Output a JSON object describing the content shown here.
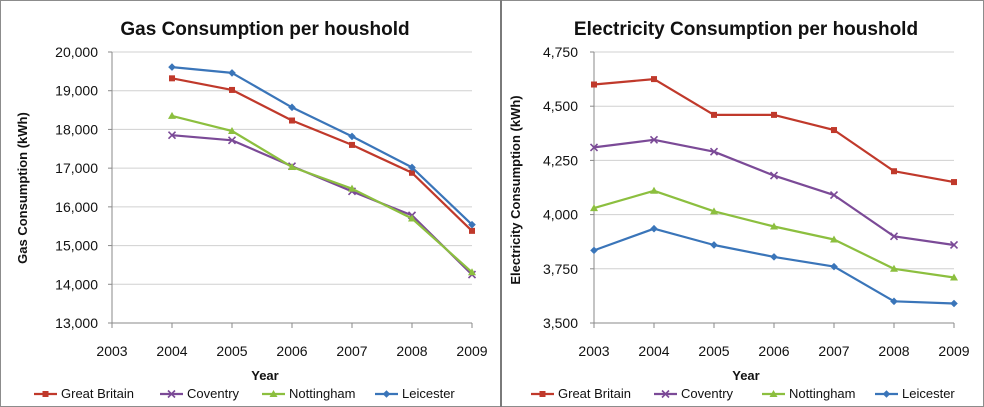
{
  "chart_data": [
    {
      "type": "line",
      "title": "Gas Consumption per houshold",
      "xlabel": "Year",
      "ylabel": "Gas Consumption (kWh)",
      "x": [
        2003,
        2004,
        2005,
        2006,
        2007,
        2008,
        2009
      ],
      "xticks": [
        "2003",
        "2004",
        "2005",
        "2006",
        "2007",
        "2008",
        "2009"
      ],
      "ylim": [
        13000,
        20000
      ],
      "yticks": [
        "13,000",
        "14,000",
        "15,000",
        "16,000",
        "17,000",
        "18,000",
        "19,000",
        "20,000"
      ],
      "grid": true,
      "legend_position": "bottom",
      "series": [
        {
          "name": "Great Britain",
          "color": "#c0392b",
          "marker": "square",
          "values": [
            null,
            19320,
            19020,
            18230,
            17600,
            16880,
            15380
          ]
        },
        {
          "name": "Coventry",
          "color": "#7b4a97",
          "marker": "x",
          "values": [
            null,
            17850,
            17720,
            17050,
            16400,
            15780,
            14250
          ]
        },
        {
          "name": "Nottingham",
          "color": "#8cbf3f",
          "marker": "triangle",
          "values": [
            null,
            18350,
            17960,
            17030,
            16470,
            15700,
            14310
          ]
        },
        {
          "name": "Leicester",
          "color": "#3a75b9",
          "marker": "diamond",
          "values": [
            null,
            19610,
            19460,
            18570,
            17820,
            17020,
            15540
          ]
        }
      ]
    },
    {
      "type": "line",
      "title": "Electricity Consumption per houshold",
      "xlabel": "Year",
      "ylabel": "Electricity Consumption (kWh)",
      "x": [
        2003,
        2004,
        2005,
        2006,
        2007,
        2008,
        2009
      ],
      "xticks": [
        "2003",
        "2004",
        "2005",
        "2006",
        "2007",
        "2008",
        "2009"
      ],
      "ylim": [
        3500,
        4750
      ],
      "yticks": [
        "3,500",
        "3,750",
        "4,000",
        "4,250",
        "4,500",
        "4,750"
      ],
      "grid": true,
      "legend_position": "bottom",
      "series": [
        {
          "name": "Great Britain",
          "color": "#c0392b",
          "marker": "square",
          "values": [
            4600,
            4625,
            4460,
            4460,
            4390,
            4200,
            4150
          ]
        },
        {
          "name": "Coventry",
          "color": "#7b4a97",
          "marker": "x",
          "values": [
            4310,
            4345,
            4290,
            4180,
            4090,
            3900,
            3860
          ]
        },
        {
          "name": "Nottingham",
          "color": "#8cbf3f",
          "marker": "triangle",
          "values": [
            4030,
            4110,
            4015,
            3945,
            3885,
            3750,
            3710
          ]
        },
        {
          "name": "Leicester",
          "color": "#3a75b9",
          "marker": "diamond",
          "values": [
            3835,
            3935,
            3860,
            3805,
            3760,
            3600,
            3590
          ]
        }
      ]
    }
  ]
}
